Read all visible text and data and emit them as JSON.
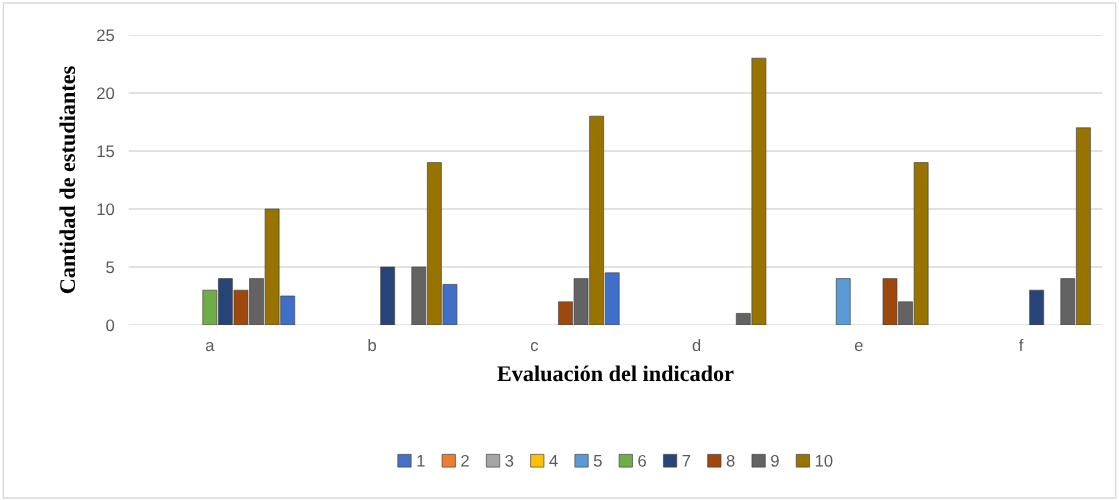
{
  "chart_data": {
    "type": "bar",
    "xlabel": "Evaluación del indicador",
    "ylabel": "Cantidad de estudiantes",
    "categories": [
      "a",
      "b",
      "c",
      "d",
      "e",
      "f"
    ],
    "series": [
      {
        "name": "1",
        "color": "#4472c4",
        "values": [
          null,
          null,
          null,
          null,
          null,
          null
        ]
      },
      {
        "name": "2",
        "color": "#ed7d31",
        "values": [
          null,
          null,
          null,
          null,
          null,
          null
        ]
      },
      {
        "name": "3",
        "color": "#a5a5a5",
        "values": [
          null,
          null,
          null,
          null,
          null,
          null
        ]
      },
      {
        "name": "4",
        "color": "#ffc000",
        "values": [
          null,
          null,
          null,
          null,
          null,
          null
        ]
      },
      {
        "name": "5",
        "color": "#5b9bd5",
        "values": [
          null,
          null,
          null,
          null,
          4,
          null
        ]
      },
      {
        "name": "6",
        "color": "#70ad47",
        "values": [
          3,
          null,
          null,
          null,
          null,
          null
        ]
      },
      {
        "name": "7",
        "color": "#264478",
        "values": [
          4,
          5,
          null,
          null,
          null,
          3
        ]
      },
      {
        "name": "8",
        "color": "#9e480e",
        "values": [
          3,
          null,
          2,
          null,
          4,
          null
        ]
      },
      {
        "name": "9",
        "color": "#636363",
        "values": [
          4,
          5,
          4,
          1,
          2,
          4
        ]
      },
      {
        "name": "10",
        "color": "#997300",
        "values": [
          10,
          14,
          18,
          23,
          14,
          17
        ]
      },
      {
        "color": "#3f6fc9",
        "values": [
          2.5,
          3.5,
          4.5,
          null,
          null,
          null
        ]
      }
    ],
    "ylim": [
      0,
      25
    ],
    "yticks": [
      0,
      5,
      10,
      15,
      20,
      25
    ],
    "grid": "y",
    "legend": "bottom"
  }
}
